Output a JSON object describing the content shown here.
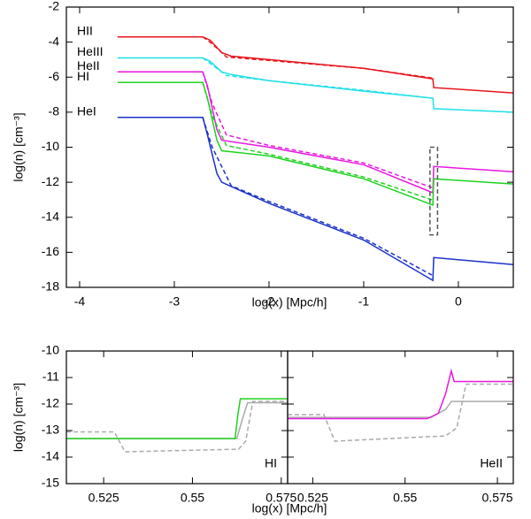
{
  "chart_data": [
    {
      "type": "line",
      "ylabel": "log(n) [cm⁻³]",
      "xlabel": "log(x) [Mpc/h]",
      "xlim": [
        -4.14,
        0.58
      ],
      "ylim": [
        -18,
        -2
      ],
      "xticks": [
        -4,
        -3,
        -2,
        -1,
        0
      ],
      "yticks": [
        -2,
        -4,
        -6,
        -8,
        -10,
        -12,
        -14,
        -16,
        -18
      ],
      "highlight": {
        "x": [
          -0.3,
          -0.22
        ],
        "y": [
          -15,
          -10
        ]
      },
      "series": [
        {
          "name": "HII",
          "color": "#e8141c",
          "dashed": false,
          "x": [
            -3.6,
            -2.7,
            -2.62,
            -2.5,
            -2.4,
            -2.0,
            -1.0,
            -0.27,
            -0.26,
            0.58
          ],
          "values": [
            -3.7,
            -3.7,
            -3.9,
            -4.6,
            -4.8,
            -5.0,
            -5.5,
            -6.1,
            -6.6,
            -6.9
          ]
        },
        {
          "color": "#e8141c",
          "dashed": true,
          "x": [
            -2.7,
            -2.6,
            -2.45,
            -2.0,
            -1.0,
            -0.28
          ],
          "values": [
            -3.7,
            -4.1,
            -4.85,
            -5.05,
            -5.5,
            -6.05
          ]
        },
        {
          "name": "HeIII",
          "color": "#1ee0e8",
          "dashed": false,
          "x": [
            -3.6,
            -2.7,
            -2.62,
            -2.5,
            -2.4,
            -2.0,
            -1.0,
            -0.27,
            -0.26,
            0.58
          ],
          "values": [
            -4.9,
            -4.9,
            -5.1,
            -5.7,
            -5.85,
            -6.2,
            -6.8,
            -7.2,
            -7.8,
            -8.0
          ]
        },
        {
          "color": "#1ee0e8",
          "dashed": true,
          "x": [
            -2.7,
            -2.6,
            -2.45,
            -2.0,
            -1.0,
            -0.28
          ],
          "values": [
            -4.9,
            -5.3,
            -5.9,
            -6.2,
            -6.75,
            -7.2
          ]
        },
        {
          "name": "HeII",
          "color": "#e818e0",
          "dashed": false,
          "x": [
            -3.6,
            -2.7,
            -2.65,
            -2.55,
            -2.5,
            -2.0,
            -1.0,
            -0.27,
            -0.26,
            0.58
          ],
          "values": [
            -5.7,
            -5.7,
            -6.5,
            -9.0,
            -9.6,
            -10.0,
            -11.0,
            -12.6,
            -11.1,
            -11.4
          ]
        },
        {
          "color": "#e818e0",
          "dashed": true,
          "x": [
            -2.7,
            -2.6,
            -2.45,
            -2.0,
            -1.0,
            -0.28
          ],
          "values": [
            -5.7,
            -7.5,
            -9.3,
            -9.9,
            -10.9,
            -12.3
          ]
        },
        {
          "name": "HI",
          "color": "#1ed21e",
          "dashed": false,
          "x": [
            -3.6,
            -2.7,
            -2.65,
            -2.55,
            -2.5,
            -2.0,
            -1.0,
            -0.27,
            -0.26,
            0.58
          ],
          "values": [
            -6.3,
            -6.3,
            -7.2,
            -9.6,
            -10.2,
            -10.5,
            -11.8,
            -13.3,
            -11.8,
            -12.1
          ]
        },
        {
          "color": "#1ed21e",
          "dashed": true,
          "x": [
            -2.7,
            -2.6,
            -2.45,
            -2.0,
            -1.0,
            -0.28
          ],
          "values": [
            -6.3,
            -8.2,
            -9.9,
            -10.4,
            -11.7,
            -13.0
          ]
        },
        {
          "name": "HeI",
          "color": "#1a32c8",
          "dashed": false,
          "x": [
            -3.6,
            -2.7,
            -2.65,
            -2.55,
            -2.5,
            -2.0,
            -1.0,
            -0.27,
            -0.26,
            0.58
          ],
          "values": [
            -8.3,
            -8.3,
            -9.3,
            -11.5,
            -12.0,
            -13.2,
            -15.3,
            -17.6,
            -16.3,
            -16.7
          ]
        },
        {
          "color": "#1a32c8",
          "dashed": true,
          "x": [
            -2.7,
            -2.6,
            -2.4,
            -2.0,
            -1.0,
            -0.28
          ],
          "values": [
            -8.3,
            -10.0,
            -12.2,
            -13.1,
            -15.2,
            -17.3
          ]
        }
      ]
    },
    {
      "type": "line",
      "ylabel": "log(n) [cm⁻³]",
      "xlabel": "log(x) [Mpc/h]",
      "annotation": "HI",
      "xlim": [
        0.5145,
        0.5768
      ],
      "ylim": [
        -15,
        -10
      ],
      "xticks": [
        0.525,
        0.55,
        0.575
      ],
      "yticks": [
        -10,
        -11,
        -12,
        -13,
        -14,
        -15
      ],
      "series": [
        {
          "color": "#aaaaaa",
          "dashed": true,
          "x": [
            0.5145,
            0.528,
            0.531,
            0.563,
            0.565,
            0.567,
            0.5768
          ],
          "values": [
            -13.05,
            -13.05,
            -13.8,
            -13.7,
            -13.4,
            -11.9,
            -11.9
          ]
        },
        {
          "color": "#aaaaaa",
          "dashed": false,
          "x": [
            0.5145,
            0.5625,
            0.564,
            0.5655,
            0.5768
          ],
          "values": [
            -13.3,
            -13.3,
            -12.6,
            -11.95,
            -11.95
          ]
        },
        {
          "color": "#1ed21e",
          "dashed": false,
          "x": [
            0.5145,
            0.562,
            0.5628,
            0.5635,
            0.5768
          ],
          "values": [
            -13.3,
            -13.3,
            -12.4,
            -11.8,
            -11.8
          ]
        }
      ]
    },
    {
      "type": "line",
      "annotation": "HeII",
      "xlim": [
        0.5182,
        0.5793
      ],
      "ylim": [
        -15,
        -10
      ],
      "xticks": [
        0.525,
        0.55,
        0.575
      ],
      "yticks": [
        -10,
        -11,
        -12,
        -13,
        -14,
        -15
      ],
      "series": [
        {
          "color": "#aaaaaa",
          "dashed": true,
          "x": [
            0.5182,
            0.528,
            0.531,
            0.561,
            0.564,
            0.5665,
            0.5793
          ],
          "values": [
            -12.4,
            -12.4,
            -13.4,
            -13.2,
            -12.9,
            -11.25,
            -11.25
          ]
        },
        {
          "color": "#aaaaaa",
          "dashed": false,
          "x": [
            0.5182,
            0.557,
            0.561,
            0.5625,
            0.5793
          ],
          "values": [
            -12.5,
            -12.5,
            -12.2,
            -11.9,
            -11.9
          ]
        },
        {
          "color": "#e818e0",
          "dashed": false,
          "x": [
            0.5182,
            0.556,
            0.559,
            0.561,
            0.5625,
            0.5633,
            0.5793
          ],
          "values": [
            -12.55,
            -12.55,
            -12.35,
            -11.6,
            -10.75,
            -11.15,
            -11.15
          ]
        }
      ]
    }
  ]
}
